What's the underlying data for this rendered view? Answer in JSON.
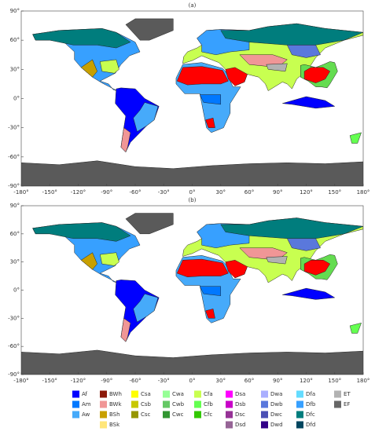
{
  "panels": [
    {
      "label": "(a)"
    },
    {
      "label": "(b)"
    }
  ],
  "axes": {
    "xticks": [
      {
        "value": -180,
        "label": "-180°"
      },
      {
        "value": -150,
        "label": "-150°"
      },
      {
        "value": -120,
        "label": "-120°"
      },
      {
        "value": -90,
        "label": "-90°"
      },
      {
        "value": -60,
        "label": "-60°"
      },
      {
        "value": -30,
        "label": "-30°"
      },
      {
        "value": 0,
        "label": "0°"
      },
      {
        "value": 30,
        "label": "30°"
      },
      {
        "value": 60,
        "label": "60°"
      },
      {
        "value": 90,
        "label": "90°"
      },
      {
        "value": 120,
        "label": "120°"
      },
      {
        "value": 150,
        "label": "150°"
      },
      {
        "value": 180,
        "label": "180°"
      }
    ],
    "yticks": [
      {
        "value": 90,
        "label": "90°"
      },
      {
        "value": 60,
        "label": "60°"
      },
      {
        "value": 30,
        "label": "30°"
      },
      {
        "value": 0,
        "label": "0°"
      },
      {
        "value": -30,
        "label": "-30°"
      },
      {
        "value": -60,
        "label": "-60°"
      },
      {
        "value": -90,
        "label": "-90°"
      }
    ]
  },
  "legend": [
    [
      {
        "name": "Af",
        "color": "#0000ff"
      },
      {
        "name": "Am",
        "color": "#0078ff"
      },
      {
        "name": "Aw",
        "color": "#46aafa"
      }
    ],
    [
      {
        "name": "BWh",
        "color": "#8c1a0a"
      },
      {
        "name": "BWk",
        "color": "#f09696"
      },
      {
        "name": "BSh",
        "color": "#c8a000"
      },
      {
        "name": "BSk",
        "color": "#ffe67a"
      }
    ],
    [
      {
        "name": "Csa",
        "color": "#ffff00"
      },
      {
        "name": "Csb",
        "color": "#c8c800"
      },
      {
        "name": "Csc",
        "color": "#969600"
      }
    ],
    [
      {
        "name": "Cwa",
        "color": "#96ff96"
      },
      {
        "name": "Cwb",
        "color": "#64c864"
      },
      {
        "name": "Cwc",
        "color": "#329632"
      }
    ],
    [
      {
        "name": "Cfa",
        "color": "#c8ff50"
      },
      {
        "name": "Cfb",
        "color": "#64ff50"
      },
      {
        "name": "Cfc",
        "color": "#32c800"
      }
    ],
    [
      {
        "name": "Dsa",
        "color": "#ff00ff"
      },
      {
        "name": "Dsb",
        "color": "#c800c8"
      },
      {
        "name": "Dsc",
        "color": "#963296"
      },
      {
        "name": "Dsd",
        "color": "#966496"
      }
    ],
    [
      {
        "name": "Dwa",
        "color": "#aaafff"
      },
      {
        "name": "Dwb",
        "color": "#5a78dc"
      },
      {
        "name": "Dwc",
        "color": "#4b50b4"
      },
      {
        "name": "Dwd",
        "color": "#320087"
      }
    ],
    [
      {
        "name": "Dfa",
        "color": "#64dcff"
      },
      {
        "name": "Dfb",
        "color": "#37a0ff"
      },
      {
        "name": "Dfc",
        "color": "#007d7d"
      },
      {
        "name": "Dfd",
        "color": "#00465f"
      }
    ],
    [
      {
        "name": "ET",
        "color": "#b2b2b2"
      },
      {
        "name": "EF",
        "color": "#666666"
      }
    ]
  ]
}
